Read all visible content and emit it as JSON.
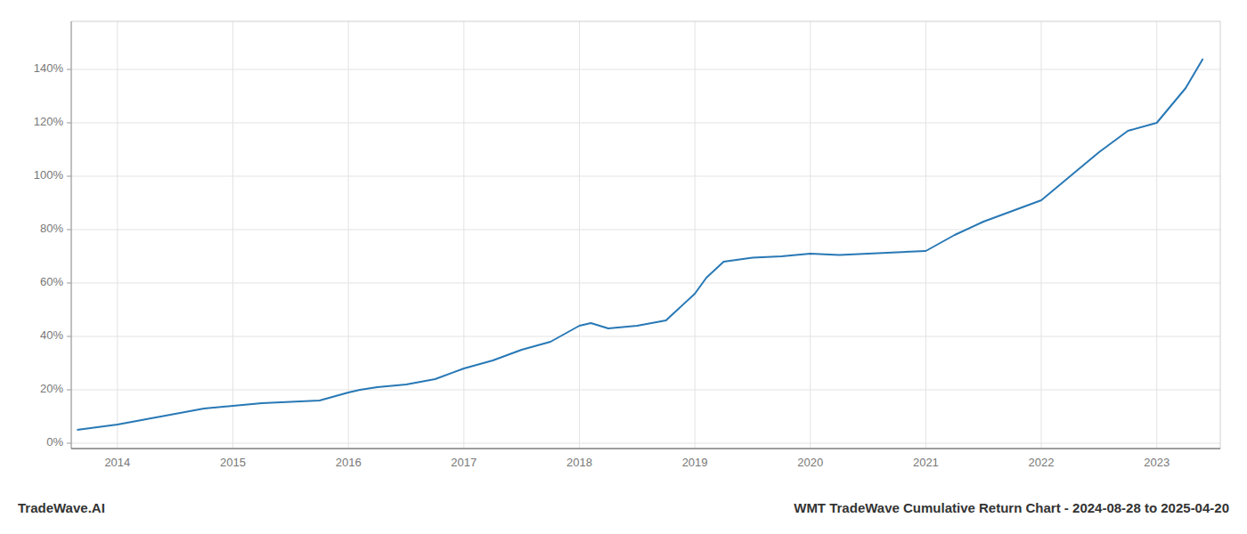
{
  "chart_data": {
    "type": "line",
    "title": "WMT TradeWave Cumulative Return Chart - 2024-08-28 to 2025-04-20",
    "annotations": [
      "TradeWave.AI"
    ],
    "x": [
      2013.65,
      2014.0,
      2014.25,
      2014.5,
      2014.75,
      2015.0,
      2015.25,
      2015.5,
      2015.75,
      2016.0,
      2016.1,
      2016.25,
      2016.5,
      2016.75,
      2017.0,
      2017.25,
      2017.5,
      2017.75,
      2018.0,
      2018.1,
      2018.25,
      2018.5,
      2018.75,
      2019.0,
      2019.1,
      2019.25,
      2019.5,
      2019.75,
      2020.0,
      2020.25,
      2020.5,
      2020.75,
      2021.0,
      2021.25,
      2021.5,
      2021.75,
      2022.0,
      2022.25,
      2022.5,
      2022.75,
      2023.0,
      2023.25,
      2023.4
    ],
    "values": [
      0.05,
      0.07,
      0.09,
      0.11,
      0.13,
      0.14,
      0.15,
      0.155,
      0.16,
      0.19,
      0.2,
      0.21,
      0.22,
      0.24,
      0.28,
      0.31,
      0.35,
      0.38,
      0.44,
      0.45,
      0.43,
      0.44,
      0.46,
      0.56,
      0.62,
      0.68,
      0.695,
      0.7,
      0.71,
      0.705,
      0.71,
      0.715,
      0.72,
      0.78,
      0.83,
      0.87,
      0.91,
      1.0,
      1.09,
      1.17,
      1.2,
      1.33,
      1.44
    ],
    "color": "#2878b5",
    "xlim": [
      2013.6,
      2023.55
    ],
    "ylim": [
      -0.02,
      1.58
    ],
    "xticks": [
      2014,
      2015,
      2016,
      2017,
      2018,
      2019,
      2020,
      2021,
      2022,
      2023
    ],
    "yticks": [
      {
        "value": 0.0,
        "label": "0%"
      },
      {
        "value": 0.2,
        "label": "20%"
      },
      {
        "value": 0.4,
        "label": "40%"
      },
      {
        "value": 0.6,
        "label": "60%"
      },
      {
        "value": 0.8,
        "label": "80%"
      },
      {
        "value": 1.0,
        "label": "100%"
      },
      {
        "value": 1.2,
        "label": "120%"
      },
      {
        "value": 1.4,
        "label": "140%"
      }
    ],
    "grid": true
  }
}
